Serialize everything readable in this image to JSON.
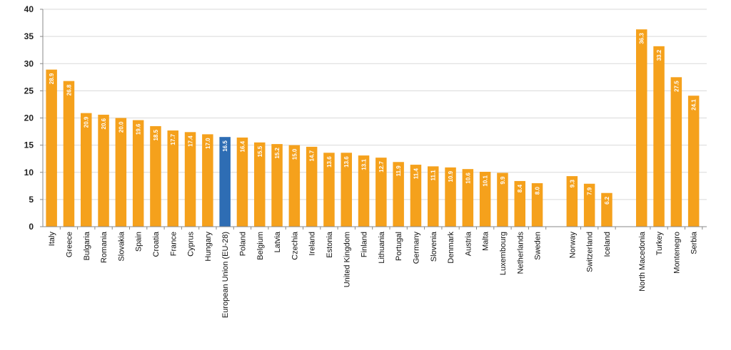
{
  "chart_data": {
    "type": "bar",
    "title": "",
    "xlabel": "",
    "ylabel": "",
    "ylim": [
      0,
      40
    ],
    "yticks": [
      0,
      5,
      10,
      15,
      20,
      25,
      30,
      35,
      40
    ],
    "grid": true,
    "legend": "none",
    "colors": {
      "bar": "#F5A11C",
      "highlight": "#2E6DB4",
      "grid": "#D9D9D9",
      "axis": "#888888"
    },
    "groups": [
      {
        "categories": [
          "Italy",
          "Greece",
          "Bulgaria",
          "Romania",
          "Slovakia",
          "Spain",
          "Croatia",
          "France",
          "Cyprus",
          "Hungary",
          "European Union (EU-28)",
          "Poland",
          "Belgium",
          "Latvia",
          "Czechia",
          "Ireland",
          "Estonia",
          "United Kingdom",
          "Finland",
          "Lithuania",
          "Portugal",
          "Germany",
          "Slovenia",
          "Denmark",
          "Austria",
          "Malta",
          "Luxembourg",
          "Netherlands",
          "Sweden"
        ],
        "values": [
          28.9,
          26.8,
          20.9,
          20.6,
          20.0,
          19.6,
          18.5,
          17.7,
          17.4,
          17.0,
          16.5,
          16.4,
          15.5,
          15.2,
          15.0,
          14.7,
          13.6,
          13.6,
          13.1,
          12.7,
          11.9,
          11.4,
          11.1,
          10.9,
          10.6,
          10.1,
          9.9,
          8.4,
          8.0
        ],
        "labels": [
          "28.9",
          "26.8",
          "20.9",
          "20.6",
          "20.0",
          "19.6",
          "18.5",
          "17.7",
          "17.4",
          "17.0",
          "16.5",
          "16.4",
          "15.5",
          "15.2",
          "15.0",
          "14.7",
          "13.6",
          "13.6",
          "13.1",
          "12.7",
          "11.9",
          "11.4",
          "11.1",
          "10.9",
          "10.6",
          "10.1",
          "9.9",
          "8.4",
          "8.0"
        ]
      },
      {
        "categories": [
          "Norway",
          "Switzerland",
          "Iceland"
        ],
        "values": [
          9.3,
          7.9,
          6.2
        ],
        "labels": [
          "9.3",
          "7.9",
          "6.2"
        ]
      },
      {
        "categories": [
          "North Macedonia",
          "Turkey",
          "Montenegro",
          "Serbia"
        ],
        "values": [
          36.3,
          33.2,
          27.5,
          24.1
        ],
        "labels": [
          "36.3",
          "33.2",
          "27.5",
          "24.1"
        ]
      }
    ],
    "highlight_category": "European Union (EU-28)"
  }
}
